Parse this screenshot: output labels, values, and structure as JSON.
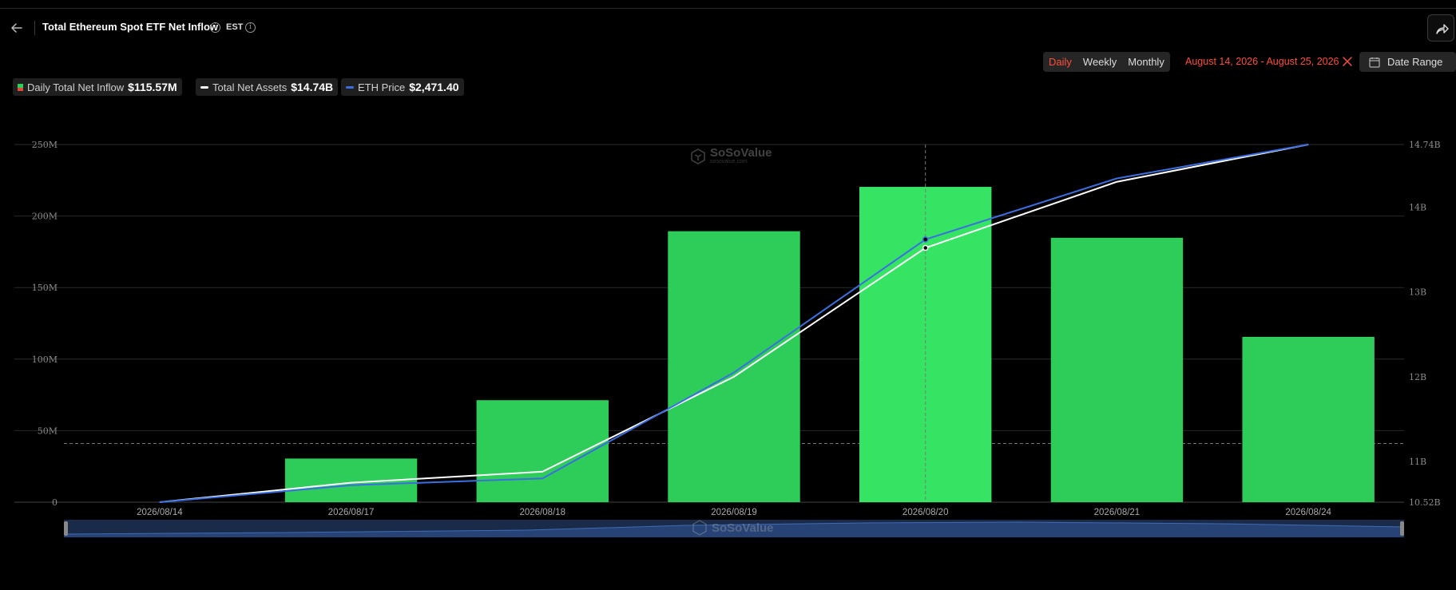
{
  "header": {
    "title": "Total Ethereum Spot ETF Net Inflow",
    "timezone": "EST"
  },
  "controls": {
    "periods": [
      "Daily",
      "Weekly",
      "Monthly"
    ],
    "active_period": "Daily",
    "date_range": "August 14, 2026 - August 25, 2026",
    "date_range_button": "Date Range"
  },
  "legend": {
    "items": [
      {
        "name": "Daily Total Net Inflow",
        "value": "$115.57M"
      },
      {
        "name": "Total Net Assets",
        "value": "$14.74B"
      },
      {
        "name": "ETH Price",
        "value": "$2,471.40"
      }
    ]
  },
  "watermark": {
    "brand": "SoSoValue",
    "domain": "sosovalue.com"
  },
  "colors": {
    "bar": "#2ecc59",
    "bar_highlight": "#36e463",
    "net_assets": "#ffffff",
    "eth_price": "#3b6fe0",
    "accent": "#ff4d3c"
  },
  "chart_data": {
    "type": "bar",
    "categories": [
      "2026/08/14",
      "2026/08/17",
      "2026/08/18",
      "2026/08/19",
      "2026/08/20",
      "2026/08/21",
      "2026/08/24"
    ],
    "series": [
      {
        "name": "Daily Total Net Inflow",
        "type": "bar",
        "axis": "left",
        "values": [
          0,
          30.5,
          71.3,
          189.4,
          220.4,
          184.8,
          115.57
        ]
      },
      {
        "name": "Total Net Assets",
        "type": "line",
        "axis": "right",
        "values": [
          10.52,
          10.75,
          10.88,
          12.0,
          13.52,
          14.3,
          14.74
        ]
      },
      {
        "name": "ETH Price",
        "type": "line",
        "axis": "right",
        "values": [
          10.52,
          10.72,
          10.8,
          12.05,
          13.62,
          14.34,
          14.74
        ]
      }
    ],
    "left_axis": {
      "ticks": [
        0,
        50,
        100,
        150,
        200,
        250
      ],
      "tick_labels": [
        "0",
        "50M",
        "100M",
        "150M",
        "200M",
        "250M"
      ],
      "ylim": [
        0,
        250
      ]
    },
    "right_axis": {
      "ticks": [
        10.52,
        11,
        12,
        13,
        14,
        14.74
      ],
      "tick_labels": [
        "10.52B",
        "11B",
        "12B",
        "13B",
        "14B",
        "14.74B"
      ],
      "ylim": [
        10.52,
        14.74
      ]
    },
    "highlighted_category": "2026/08/20",
    "crosshair_value": 41,
    "grid": true
  }
}
